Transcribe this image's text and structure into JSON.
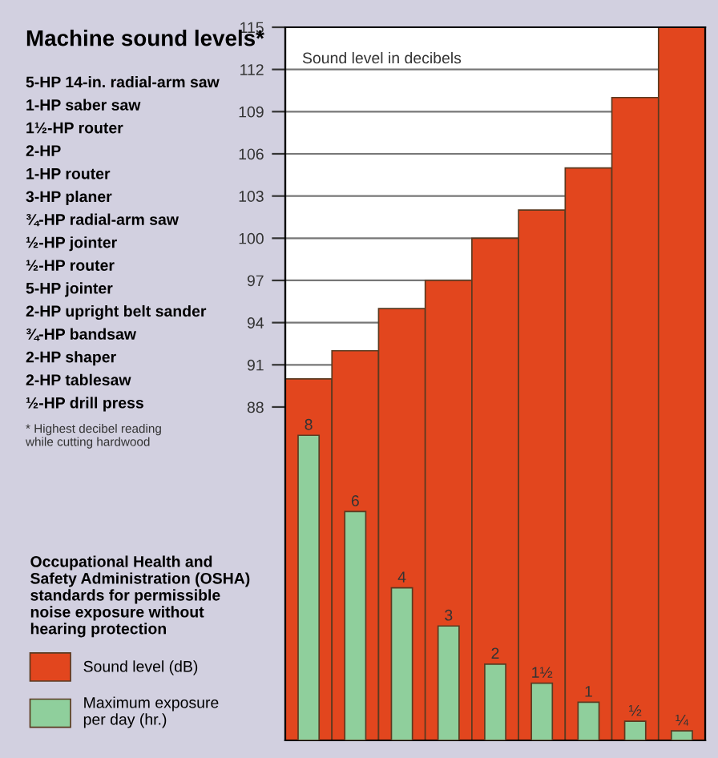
{
  "chart_data": {
    "type": "bar",
    "title": "Machine sound levels*",
    "ylabel": "Sound level in decibels",
    "legend_title": "Occupational Health and\nSafety Administration (OSHA)\nstandards for permissible\nnoise exposure without\nhearing protection",
    "categories": [
      null,
      null,
      null,
      null,
      null,
      null,
      null,
      null,
      null
    ],
    "series": [
      {
        "name": "Sound level (dB)",
        "color": "#e2461e",
        "values": [
          90,
          92,
          95,
          97,
          100,
          102,
          105,
          110,
          115
        ]
      },
      {
        "name": "Maximum exposure\nper day (hr.)",
        "color": "#8fcf9c",
        "axis": "y2",
        "values": [
          8,
          6,
          4,
          3,
          2,
          1.5,
          1,
          0.5,
          0.25
        ],
        "value_labels": [
          "8",
          "6",
          "4",
          "3",
          "2",
          "1½",
          "1",
          "½",
          "¼"
        ]
      }
    ],
    "ylim": [
      64.3,
      115
    ],
    "yticks": [
      88,
      91,
      94,
      97,
      100,
      103,
      106,
      109,
      112,
      115
    ],
    "y2lim": [
      0,
      18.7
    ],
    "grid": "y",
    "legend": "left",
    "tick_labels": "y",
    "annotations": [
      "5-HP 14-in. radial-arm saw",
      "1-HP saber saw",
      "1½-HP router",
      "2-HP",
      "1-HP router",
      "3-HP planer",
      "¾-HP radial-arm saw",
      "½-HP jointer",
      "½-HP router",
      "5-HP jointer",
      "2-HP upright belt sander",
      "¾-HP bandsaw",
      "2-HP shaper",
      "2-HP tablesaw",
      "½-HP drill press",
      "* Highest decibel reading\nwhile cutting hardwood"
    ]
  }
}
